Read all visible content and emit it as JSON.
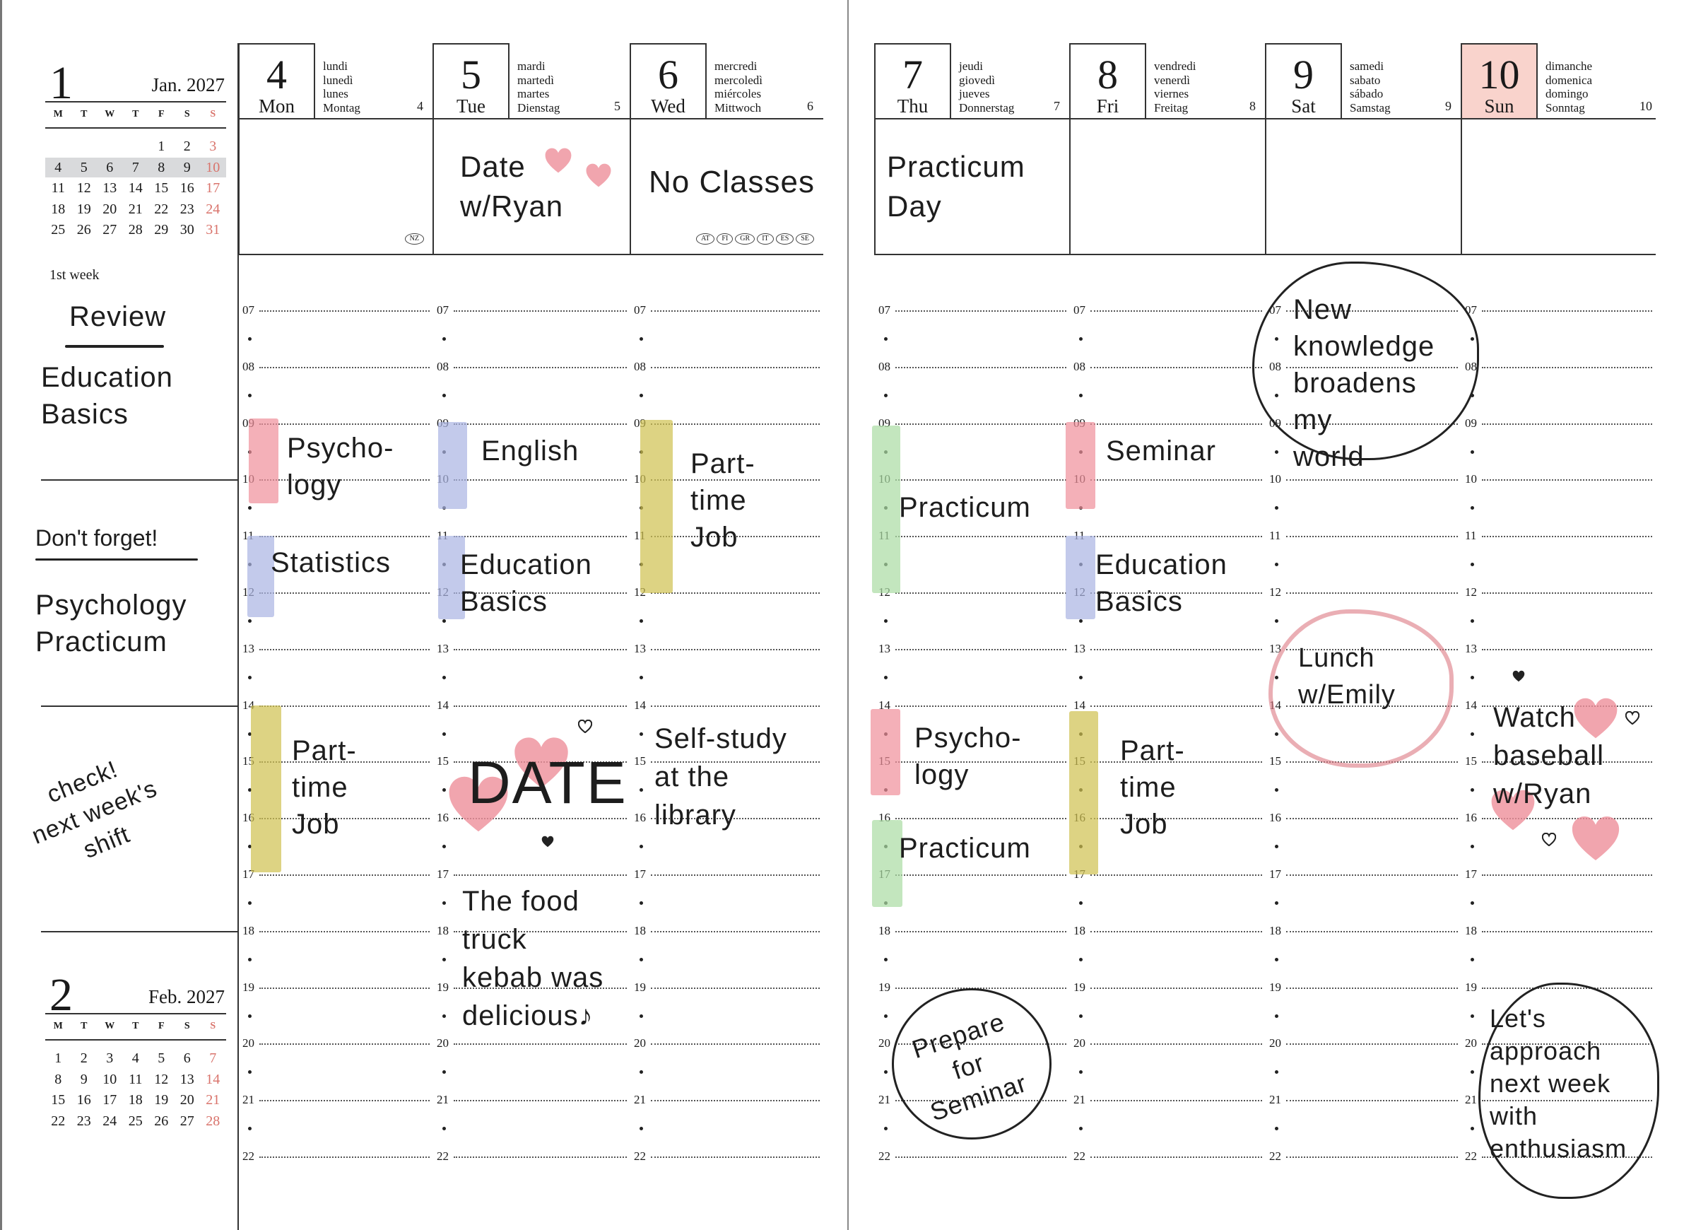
{
  "mini_calendars": [
    {
      "big": "1",
      "name": "Jan. 2027",
      "dow": [
        "M",
        "T",
        "W",
        "T",
        "F",
        "S",
        "S"
      ],
      "weeks": [
        [
          "",
          "",
          "",
          "",
          "1",
          "2",
          "3"
        ],
        [
          "4",
          "5",
          "6",
          "7",
          "8",
          "9",
          "10"
        ],
        [
          "11",
          "12",
          "13",
          "14",
          "15",
          "16",
          "17"
        ],
        [
          "18",
          "19",
          "20",
          "21",
          "22",
          "23",
          "24"
        ],
        [
          "25",
          "26",
          "27",
          "28",
          "29",
          "30",
          "31"
        ]
      ],
      "highlight_week": 1
    },
    {
      "big": "2",
      "name": "Feb. 2027",
      "dow": [
        "M",
        "T",
        "W",
        "T",
        "F",
        "S",
        "S"
      ],
      "weeks": [
        [
          "1",
          "2",
          "3",
          "4",
          "5",
          "6",
          "7"
        ],
        [
          "8",
          "9",
          "10",
          "11",
          "12",
          "13",
          "14"
        ],
        [
          "15",
          "16",
          "17",
          "18",
          "19",
          "20",
          "21"
        ],
        [
          "22",
          "23",
          "24",
          "25",
          "26",
          "27",
          "28"
        ]
      ]
    }
  ],
  "week_label": "1st week",
  "days": [
    {
      "num": "4",
      "name": "Mon",
      "langs": "lundi\nlunedì\nlunes\nMontag",
      "small": "4",
      "holidays": [
        "NZ"
      ]
    },
    {
      "num": "5",
      "name": "Tue",
      "langs": "mardi\nmartedì\nmartes\nDienstag",
      "small": "5",
      "holidays": []
    },
    {
      "num": "6",
      "name": "Wed",
      "langs": "mercredi\nmercoledì\nmiércoles\nMittwoch",
      "small": "6",
      "holidays": [
        "AT",
        "FI",
        "GR",
        "IT",
        "ES",
        "SE"
      ]
    },
    {
      "num": "7",
      "name": "Thu",
      "langs": "jeudi\ngiovedì\njueves\nDonnerstag",
      "small": "7",
      "holidays": []
    },
    {
      "num": "8",
      "name": "Fri",
      "langs": "vendredi\nvenerdì\nviernes\nFreitag",
      "small": "8",
      "holidays": []
    },
    {
      "num": "9",
      "name": "Sat",
      "langs": "samedi\nsabato\nsábado\nSamstag",
      "small": "9",
      "holidays": []
    },
    {
      "num": "10",
      "name": "Sun",
      "langs": "dimanche\ndomenica\ndomingo\nSonntag",
      "small": "10",
      "holidays": [],
      "highlight": true
    }
  ],
  "hours": [
    "07",
    "08",
    "09",
    "10",
    "11",
    "12",
    "13",
    "14",
    "15",
    "16",
    "17",
    "18",
    "19",
    "20",
    "21",
    "22"
  ],
  "colors": {
    "sunday_box": "#f9d3cc",
    "weekend_text": "#d9736b",
    "highlight_week": "#d9dadc",
    "pink_marker": "#ef8f9a",
    "blue_marker": "#a9b3e2",
    "yellow_marker": "#cfc04f",
    "green_marker": "#a9dba2"
  },
  "sidebar_notes": {
    "review": "Review",
    "review_body": "Education\nBasics",
    "dont_forget": "Don't forget!",
    "dont_forget_body": "Psychology\nPracticum",
    "check": "check!\nnext week's\nshift"
  },
  "notes": {
    "mon_psych": "Psycho-\nlogy",
    "mon_stats": "Statistics",
    "mon_job": "Part-\ntime\nJob",
    "tue_date": "Date\nw/Ryan",
    "tue_english": "English",
    "tue_edu": "Education\n   Basics",
    "tue_big_date": "DATE",
    "tue_food": "The food\ntruck\nkebab was\ndelicious♪",
    "wed_noclass": "No Classes",
    "wed_job": "Part-\ntime\nJob",
    "wed_study": "Self-study\nat the\nlibrary",
    "thu_day": "Practicum\nDay",
    "thu_prac1": "Practicum",
    "thu_psych": "Psycho-\nlogy",
    "thu_prac2": "Practicum",
    "thu_prepare": "Prepare\nfor\nSeminar",
    "fri_seminar": "Seminar",
    "fri_edu": "Education\n  Basics",
    "fri_job": "Part-\ntime\nJob",
    "sat_knowledge": "New knowledge\nbroadens my\nworld",
    "sat_lunch": "Lunch\nw/Emily",
    "sat_approach": "Let's approach\nnext week\nwith enthusiasm",
    "sun_baseball": "Watch\nbaseball\nw/Ryan"
  }
}
